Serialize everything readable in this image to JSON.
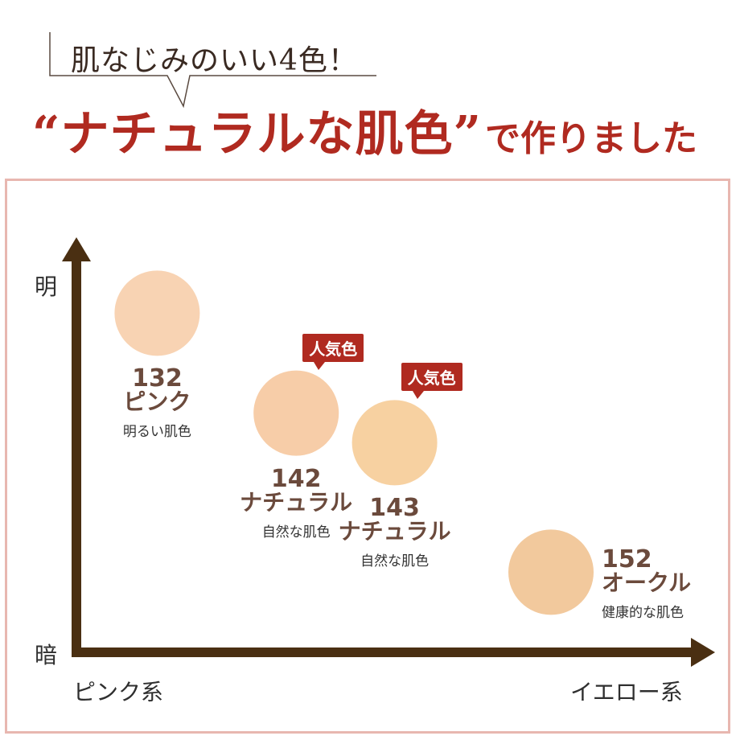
{
  "callout": {
    "text": "肌なじみのいい4色！"
  },
  "headline": {
    "main": "“ナチュラルな肌色”",
    "suffix": "で作りました"
  },
  "colors": {
    "accent": "#b02a20",
    "axis": "#4a2f12",
    "panel_border": "#e8b7b0",
    "label_brown": "#6b4a3c"
  },
  "chart_data": {
    "type": "scatter",
    "title": "",
    "xlabel": "",
    "ylabel": "",
    "x_axis": {
      "low_label": "ピンク系",
      "high_label": "イエロー系"
    },
    "y_axis": {
      "low_label": "暗",
      "high_label": "明"
    },
    "xlim": [
      0,
      10
    ],
    "ylim": [
      0,
      10
    ],
    "grid": false,
    "legend": "none",
    "points": [
      {
        "code": "132",
        "name": "ピンク",
        "desc": "明るい肌色",
        "x": 1.2,
        "y": 8.6,
        "color": "#f8d3b3",
        "badge": ""
      },
      {
        "code": "142",
        "name": "ナチュラル",
        "desc": "自然な肌色",
        "x": 3.6,
        "y": 5.9,
        "color": "#f7cda8",
        "badge": "人気色"
      },
      {
        "code": "143",
        "name": "ナチュラル",
        "desc": "自然な肌色",
        "x": 5.3,
        "y": 5.1,
        "color": "#f7d1a1",
        "badge": "人気色"
      },
      {
        "code": "152",
        "name": "オークル",
        "desc": "健康的な肌色",
        "x": 8.0,
        "y": 1.6,
        "color": "#f2c99d",
        "badge": ""
      }
    ]
  }
}
